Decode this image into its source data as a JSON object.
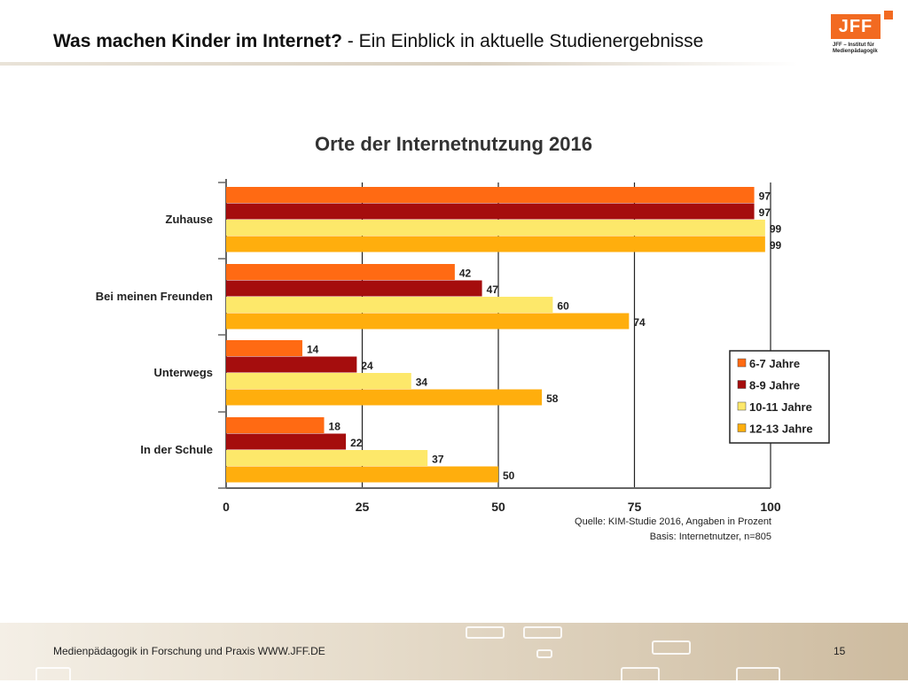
{
  "slide": {
    "title_bold": "Was machen Kinder im Internet?",
    "title_rest": " - Ein Einblick in aktuelle Studienergebnisse",
    "logo_text": "JFF",
    "logo_subtitle_line1": "JFF – Institut für",
    "logo_subtitle_line2": "Medienpädagogik",
    "footer_text": "Medienpädagogik in Forschung und Praxis WWW.JFF.DE",
    "page_number": "15"
  },
  "chart_data": {
    "type": "bar",
    "orientation": "horizontal",
    "title": "Orte der Internetnutzung 2016",
    "categories": [
      "Zuhause",
      "Bei meinen Freunden",
      "Unterwegs",
      "In der Schule"
    ],
    "series": [
      {
        "name": "6-7 Jahre",
        "color": "#ff6a13",
        "values": [
          97,
          42,
          14,
          18
        ]
      },
      {
        "name": "8-9 Jahre",
        "color": "#a50d0d",
        "values": [
          97,
          47,
          24,
          22
        ]
      },
      {
        "name": "10-11 Jahre",
        "color": "#fde86a",
        "values": [
          99,
          60,
          34,
          37
        ]
      },
      {
        "name": "12-13 Jahre",
        "color": "#ffae0d",
        "values": [
          99,
          74,
          58,
          50
        ]
      }
    ],
    "xlim": [
      0,
      100
    ],
    "xticks": [
      "0",
      "25",
      "50",
      "75",
      "100"
    ],
    "grid": true,
    "legend_position": "right-bottom",
    "source_line1": "Quelle: KIM-Studie 2016, Angaben in Prozent",
    "source_line2": "Basis: Internetnutzer, n=805"
  }
}
